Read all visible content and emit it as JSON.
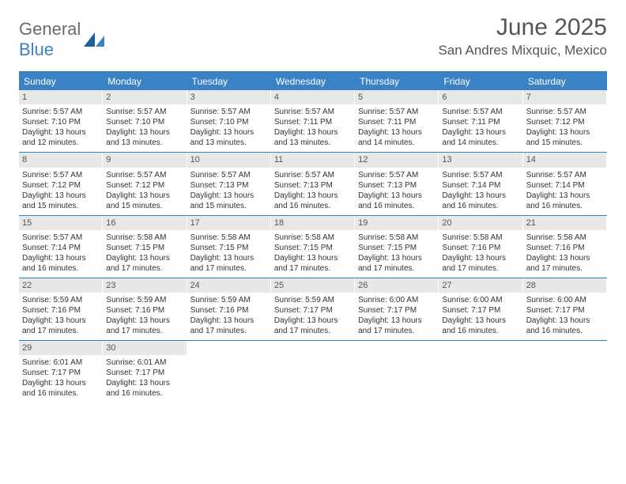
{
  "logo": {
    "text1": "General",
    "text2": "Blue"
  },
  "title": "June 2025",
  "location": "San Andres Mixquic, Mexico",
  "colors": {
    "brand": "#3b82c4",
    "header_text": "#ffffff",
    "daynum_bg": "#e8e8e8",
    "body_text": "#333333",
    "muted": "#555555"
  },
  "weekdays": [
    "Sunday",
    "Monday",
    "Tuesday",
    "Wednesday",
    "Thursday",
    "Friday",
    "Saturday"
  ],
  "days": [
    {
      "n": "1",
      "sr": "5:57 AM",
      "ss": "7:10 PM",
      "dh": "13",
      "dm": "12"
    },
    {
      "n": "2",
      "sr": "5:57 AM",
      "ss": "7:10 PM",
      "dh": "13",
      "dm": "13"
    },
    {
      "n": "3",
      "sr": "5:57 AM",
      "ss": "7:10 PM",
      "dh": "13",
      "dm": "13"
    },
    {
      "n": "4",
      "sr": "5:57 AM",
      "ss": "7:11 PM",
      "dh": "13",
      "dm": "13"
    },
    {
      "n": "5",
      "sr": "5:57 AM",
      "ss": "7:11 PM",
      "dh": "13",
      "dm": "14"
    },
    {
      "n": "6",
      "sr": "5:57 AM",
      "ss": "7:11 PM",
      "dh": "13",
      "dm": "14"
    },
    {
      "n": "7",
      "sr": "5:57 AM",
      "ss": "7:12 PM",
      "dh": "13",
      "dm": "15"
    },
    {
      "n": "8",
      "sr": "5:57 AM",
      "ss": "7:12 PM",
      "dh": "13",
      "dm": "15"
    },
    {
      "n": "9",
      "sr": "5:57 AM",
      "ss": "7:12 PM",
      "dh": "13",
      "dm": "15"
    },
    {
      "n": "10",
      "sr": "5:57 AM",
      "ss": "7:13 PM",
      "dh": "13",
      "dm": "15"
    },
    {
      "n": "11",
      "sr": "5:57 AM",
      "ss": "7:13 PM",
      "dh": "13",
      "dm": "16"
    },
    {
      "n": "12",
      "sr": "5:57 AM",
      "ss": "7:13 PM",
      "dh": "13",
      "dm": "16"
    },
    {
      "n": "13",
      "sr": "5:57 AM",
      "ss": "7:14 PM",
      "dh": "13",
      "dm": "16"
    },
    {
      "n": "14",
      "sr": "5:57 AM",
      "ss": "7:14 PM",
      "dh": "13",
      "dm": "16"
    },
    {
      "n": "15",
      "sr": "5:57 AM",
      "ss": "7:14 PM",
      "dh": "13",
      "dm": "16"
    },
    {
      "n": "16",
      "sr": "5:58 AM",
      "ss": "7:15 PM",
      "dh": "13",
      "dm": "17"
    },
    {
      "n": "17",
      "sr": "5:58 AM",
      "ss": "7:15 PM",
      "dh": "13",
      "dm": "17"
    },
    {
      "n": "18",
      "sr": "5:58 AM",
      "ss": "7:15 PM",
      "dh": "13",
      "dm": "17"
    },
    {
      "n": "19",
      "sr": "5:58 AM",
      "ss": "7:15 PM",
      "dh": "13",
      "dm": "17"
    },
    {
      "n": "20",
      "sr": "5:58 AM",
      "ss": "7:16 PM",
      "dh": "13",
      "dm": "17"
    },
    {
      "n": "21",
      "sr": "5:58 AM",
      "ss": "7:16 PM",
      "dh": "13",
      "dm": "17"
    },
    {
      "n": "22",
      "sr": "5:59 AM",
      "ss": "7:16 PM",
      "dh": "13",
      "dm": "17"
    },
    {
      "n": "23",
      "sr": "5:59 AM",
      "ss": "7:16 PM",
      "dh": "13",
      "dm": "17"
    },
    {
      "n": "24",
      "sr": "5:59 AM",
      "ss": "7:16 PM",
      "dh": "13",
      "dm": "17"
    },
    {
      "n": "25",
      "sr": "5:59 AM",
      "ss": "7:17 PM",
      "dh": "13",
      "dm": "17"
    },
    {
      "n": "26",
      "sr": "6:00 AM",
      "ss": "7:17 PM",
      "dh": "13",
      "dm": "17"
    },
    {
      "n": "27",
      "sr": "6:00 AM",
      "ss": "7:17 PM",
      "dh": "13",
      "dm": "16"
    },
    {
      "n": "28",
      "sr": "6:00 AM",
      "ss": "7:17 PM",
      "dh": "13",
      "dm": "16"
    },
    {
      "n": "29",
      "sr": "6:01 AM",
      "ss": "7:17 PM",
      "dh": "13",
      "dm": "16"
    },
    {
      "n": "30",
      "sr": "6:01 AM",
      "ss": "7:17 PM",
      "dh": "13",
      "dm": "16"
    }
  ],
  "labels": {
    "sunrise": "Sunrise: ",
    "sunset": "Sunset: ",
    "daylight1": "Daylight: ",
    "daylight2": " hours and ",
    "daylight3": " minutes."
  }
}
